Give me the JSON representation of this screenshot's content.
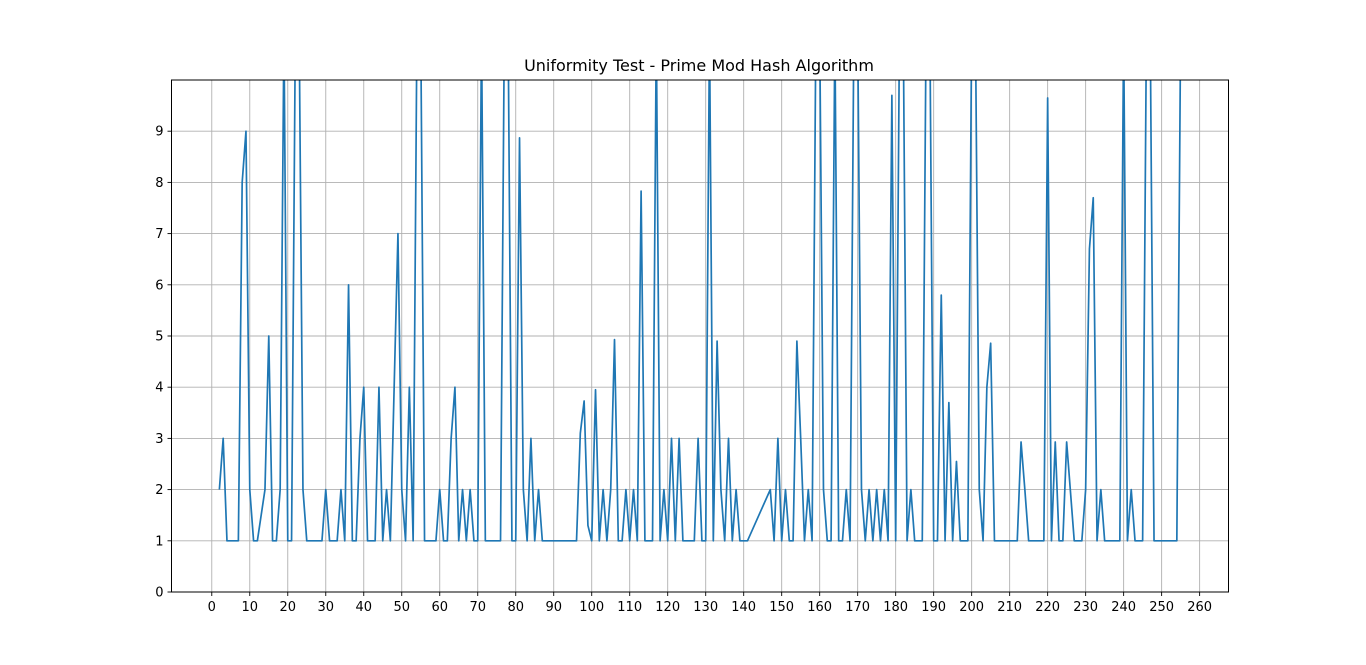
{
  "chart_data": {
    "type": "line",
    "title": "Uniformity Test - Prime Mod Hash Algorithm",
    "xlabel": "",
    "ylabel": "",
    "xlim": [
      -10.6,
      267.6
    ],
    "ylim": [
      0,
      10
    ],
    "xticks": [
      0,
      10,
      20,
      30,
      40,
      50,
      60,
      70,
      80,
      90,
      100,
      110,
      120,
      130,
      140,
      150,
      160,
      170,
      180,
      190,
      200,
      210,
      220,
      230,
      240,
      250,
      260
    ],
    "yticks": [
      0,
      1,
      2,
      3,
      4,
      5,
      6,
      7,
      8,
      9
    ],
    "grid": true,
    "colors": {
      "series": "#1f77b4",
      "grid": "#b0b0b0"
    },
    "series": [
      {
        "x": [
          2,
          3,
          4,
          7,
          8,
          9,
          10,
          11,
          12,
          14,
          15,
          16,
          17,
          18,
          19,
          20,
          21,
          22,
          23,
          24,
          25,
          29,
          30,
          31,
          33,
          34,
          35,
          36,
          37,
          38,
          39,
          40,
          41,
          43,
          44,
          45,
          46,
          47,
          48,
          49,
          50,
          51,
          52,
          53,
          54,
          55,
          56,
          57,
          59,
          60,
          61,
          62,
          63,
          64,
          65,
          66,
          67,
          68,
          69,
          70,
          71,
          72,
          73,
          76,
          77,
          78,
          79,
          80,
          81,
          82,
          83,
          84,
          85,
          86,
          87,
          96,
          97,
          98,
          99,
          100,
          101,
          102,
          103,
          104,
          105,
          106,
          107,
          108,
          109,
          110,
          111,
          112,
          113,
          114,
          115,
          116,
          117,
          118,
          119,
          120,
          121,
          122,
          123,
          124,
          127,
          128,
          129,
          130,
          131,
          132,
          133,
          134,
          135,
          136,
          137,
          138,
          139,
          140,
          141,
          147,
          148,
          149,
          150,
          151,
          152,
          153,
          154,
          155,
          156,
          157,
          158,
          159,
          160,
          161,
          162,
          163,
          164,
          165,
          166,
          167,
          168,
          169,
          170,
          171,
          172,
          173,
          174,
          175,
          176,
          177,
          178,
          179,
          180,
          181,
          182,
          183,
          184,
          185,
          187,
          188,
          189,
          190,
          191,
          192,
          193,
          194,
          195,
          196,
          197,
          198,
          199,
          200,
          201,
          202,
          203,
          204,
          205,
          206,
          211,
          212,
          213,
          214,
          215,
          218,
          219,
          220,
          221,
          222,
          223,
          224,
          225,
          227,
          228,
          229,
          230,
          231,
          232,
          233,
          234,
          235,
          238,
          239,
          240,
          241,
          242,
          243,
          245,
          246,
          247,
          248,
          253,
          254,
          255
        ],
        "y": [
          2,
          3,
          1,
          1,
          8,
          9,
          2,
          1,
          1,
          2,
          5,
          1,
          1,
          2,
          11,
          1,
          1,
          11,
          11,
          2,
          1,
          1,
          2,
          1,
          1,
          2,
          1,
          6,
          1,
          1,
          3,
          4,
          1,
          1,
          4,
          1,
          2,
          1,
          4,
          7,
          2,
          1,
          4,
          1,
          11,
          11,
          1,
          1,
          1,
          2,
          1,
          1,
          3,
          4,
          1,
          2,
          1,
          2,
          1,
          1,
          11,
          1,
          1,
          1,
          11,
          11,
          1,
          1,
          8.87,
          2,
          1,
          3,
          1,
          2,
          1,
          1,
          3.1,
          3.73,
          1.3,
          1,
          3.95,
          1,
          2,
          1,
          2,
          4.93,
          1,
          1,
          2,
          1,
          2,
          1,
          7.83,
          1,
          1,
          1,
          11,
          1,
          2,
          1,
          3,
          1,
          3,
          1,
          1,
          3,
          1,
          1,
          11,
          1,
          4.9,
          2,
          1,
          3,
          1,
          2,
          1,
          1,
          1,
          2,
          1,
          3,
          1,
          2,
          1,
          1,
          4.9,
          3,
          1,
          2,
          1,
          11,
          11,
          2,
          1,
          1,
          11,
          1,
          1,
          2,
          1,
          11,
          11,
          2,
          1,
          2,
          1,
          2,
          1,
          2,
          1,
          9.7,
          1,
          11,
          11,
          1,
          2,
          1,
          1,
          11,
          11,
          1,
          1,
          5.8,
          1,
          3.7,
          1,
          2.55,
          1,
          1,
          1,
          11,
          11,
          2,
          1,
          4,
          4.86,
          1,
          1,
          1,
          2.93,
          2,
          1,
          1,
          1,
          9.65,
          1,
          2.93,
          1,
          1,
          2.93,
          1,
          1,
          1,
          2,
          6.7,
          7.7,
          1,
          2,
          1,
          1,
          1,
          11,
          1,
          2,
          1,
          1,
          11,
          11,
          1,
          1,
          1,
          11
        ]
      }
    ]
  }
}
